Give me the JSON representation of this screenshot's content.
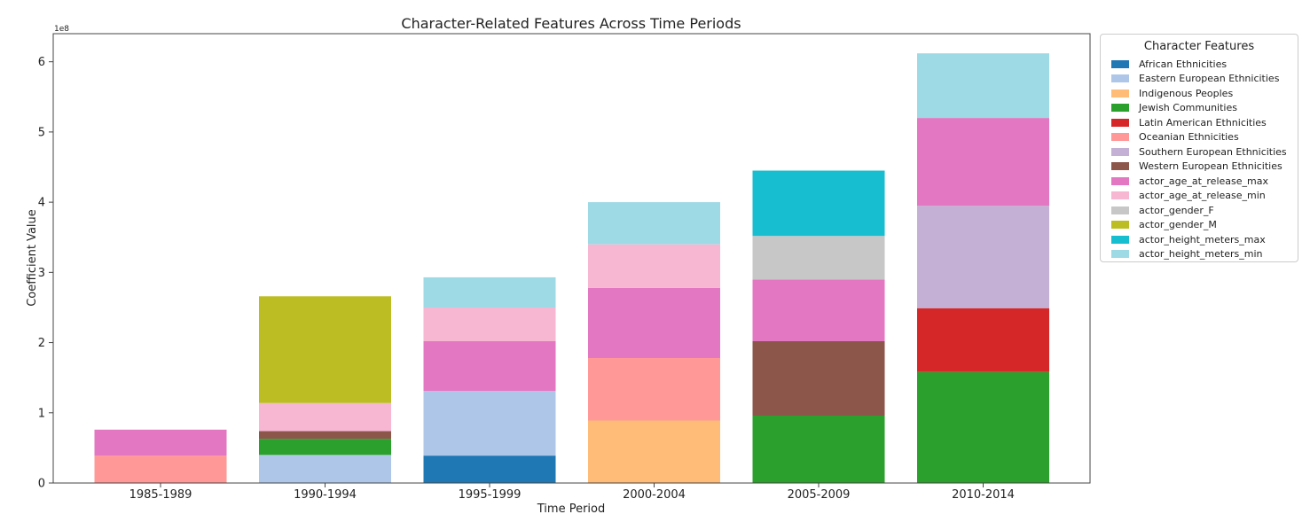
{
  "chart_data": {
    "type": "bar",
    "stacked": true,
    "title": "Character-Related Features Across Time Periods",
    "xlabel": "Time Period",
    "ylabel": "Coefficient Value",
    "offset_text": "1e8",
    "categories": [
      "1985-1989",
      "1990-1994",
      "1995-1999",
      "2000-2004",
      "2005-2009",
      "2010-2014"
    ],
    "ylim": [
      0,
      6.4
    ],
    "yticks": [
      0,
      1,
      2,
      3,
      4,
      5,
      6
    ],
    "ytick_labels": [
      "0",
      "1",
      "2",
      "3",
      "4",
      "5",
      "6"
    ],
    "grid": false,
    "legend": {
      "title": "Character Features",
      "placement": "outside-right-top"
    },
    "series": [
      {
        "name": "African Ethnicities",
        "color": "#1f77b4",
        "values": [
          0,
          0,
          0.39,
          0,
          0,
          0
        ]
      },
      {
        "name": "Eastern European Ethnicities",
        "color": "#aec7e8",
        "values": [
          0,
          0.4,
          0.92,
          0,
          0,
          0
        ]
      },
      {
        "name": "Indigenous Peoples",
        "color": "#ffbb78",
        "values": [
          0,
          0,
          0,
          0.89,
          0,
          0
        ]
      },
      {
        "name": "Jewish Communities",
        "color": "#2ca02c",
        "values": [
          0,
          0.23,
          0,
          0,
          0.96,
          1.58
        ]
      },
      {
        "name": "Latin American Ethnicities",
        "color": "#d62728",
        "values": [
          0,
          0,
          0,
          0,
          0,
          0.91
        ]
      },
      {
        "name": "Oceanian Ethnicities",
        "color": "#ff9896",
        "values": [
          0.39,
          0,
          0,
          0.89,
          0,
          0
        ]
      },
      {
        "name": "Southern European Ethnicities",
        "color": "#c5b0d5",
        "values": [
          0,
          0,
          0,
          0,
          0,
          1.46
        ]
      },
      {
        "name": "Western European Ethnicities",
        "color": "#8c564b",
        "values": [
          0,
          0.11,
          0,
          0,
          1.06,
          0
        ]
      },
      {
        "name": "actor_age_at_release_max",
        "color": "#e377c2",
        "values": [
          0.37,
          0,
          0.71,
          1.0,
          0.88,
          1.25
        ]
      },
      {
        "name": "actor_age_at_release_min",
        "color": "#f7b6d2",
        "values": [
          0,
          0.4,
          0.48,
          0.62,
          0,
          0
        ]
      },
      {
        "name": "actor_gender_F",
        "color": "#c7c7c7",
        "values": [
          0,
          0,
          0,
          0,
          0.62,
          0
        ]
      },
      {
        "name": "actor_gender_M",
        "color": "#bcbd22",
        "values": [
          0,
          1.52,
          0,
          0,
          0,
          0
        ]
      },
      {
        "name": "actor_height_meters_max",
        "color": "#17becf",
        "values": [
          0,
          0,
          0,
          0,
          0.93,
          0
        ]
      },
      {
        "name": "actor_height_meters_min",
        "color": "#9edae5",
        "values": [
          0,
          0,
          0.43,
          0.6,
          0,
          0.92
        ]
      }
    ]
  }
}
